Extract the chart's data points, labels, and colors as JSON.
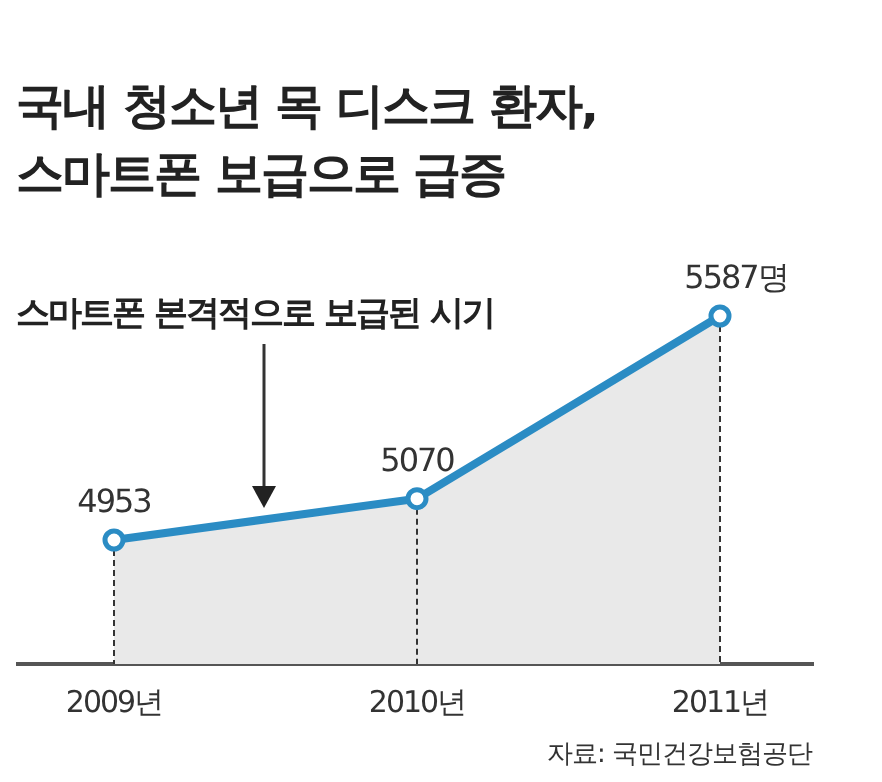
{
  "chart_data": {
    "type": "area",
    "title": "국내 청소년 목 디스크 환자, 스마트폰 보급으로 급증",
    "categories": [
      "2009년",
      "2010년",
      "2011년"
    ],
    "series": [
      {
        "color": "#2b8cc4",
        "values": [
          4953,
          5070,
          5587
        ],
        "value_labels": [
          "4953",
          "5070",
          "5587명"
        ]
      }
    ],
    "marker": "circle",
    "annotations": [
      "스마트폰 본격적으로 보급된 시기",
      "자료: 국민건강보험공단"
    ]
  }
}
